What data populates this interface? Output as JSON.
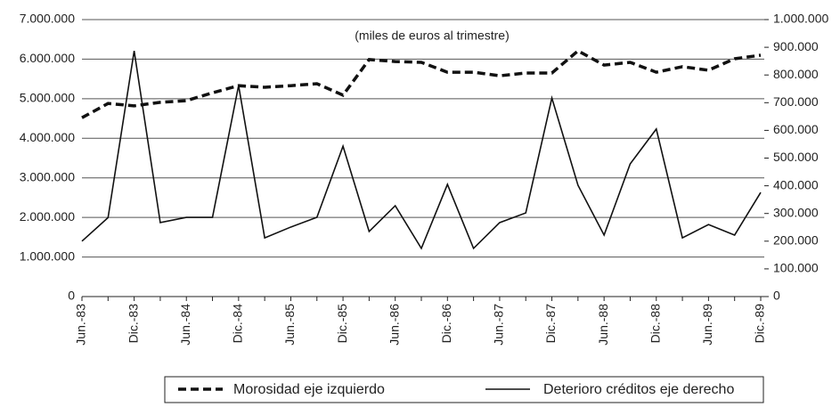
{
  "chart_data": {
    "type": "line",
    "annotation": "(miles de euros al trimestre)",
    "categories": [
      "Jun.-83",
      null,
      "Dic.-83",
      null,
      "Jun.-84",
      null,
      "Dic.-84",
      null,
      "Jun.-85",
      null,
      "Dic.-85",
      null,
      "Jun.-86",
      null,
      "Dic.-86",
      null,
      "Jun.-87",
      null,
      "Dic.-87",
      null,
      "Jun.-88",
      null,
      "Dic.-88",
      null,
      "Jun.-89",
      null,
      "Dic.-89"
    ],
    "series": [
      {
        "name": "Morosidad eje izquierdo",
        "color": "#111111",
        "dash": true,
        "values": [
          4520000,
          4880000,
          4820000,
          4910000,
          4950000,
          5150000,
          5330000,
          5290000,
          5330000,
          5380000,
          5090000,
          5990000,
          5940000,
          5920000,
          5670000,
          5670000,
          5580000,
          5650000,
          5650000,
          6210000,
          5850000,
          5920000,
          5670000,
          5810000,
          5720000,
          6010000,
          6100000
        ]
      },
      {
        "name": "Deterioro créditos eje derecho",
        "color": "#111111",
        "dash": false,
        "axis": "y2",
        "values": [
          200000,
          285000,
          887000,
          267000,
          286000,
          286000,
          762000,
          212000,
          251000,
          286000,
          543000,
          235000,
          328000,
          174000,
          405000,
          174000,
          267000,
          302000,
          717000,
          402000,
          222000,
          479000,
          605000,
          212000,
          260000,
          222000,
          376000
        ]
      }
    ],
    "ylim": [
      0,
      7000000
    ],
    "yticks": [
      0,
      {
        "value": 1000000,
        "label": "1.000.000"
      },
      {
        "value": 2000000,
        "label": "2.000.000"
      },
      {
        "value": 3000000,
        "label": "3.000.000"
      },
      {
        "value": 4000000,
        "label": "4.000.000"
      },
      {
        "value": 5000000,
        "label": "5.000.000"
      },
      {
        "value": 6000000,
        "label": "6.000.000"
      },
      {
        "value": 7000000,
        "label": "7.000.000"
      }
    ],
    "y2lim": [
      0,
      1000000
    ],
    "y2ticks": [
      0,
      {
        "value": 100000,
        "label": "100.000"
      },
      {
        "value": 200000,
        "label": "200.000"
      },
      {
        "value": 300000,
        "label": "300.000"
      },
      {
        "value": 400000,
        "label": "400.000"
      },
      {
        "value": 500000,
        "label": "500.000"
      },
      {
        "value": 600000,
        "label": "600.000"
      },
      {
        "value": 700000,
        "label": "700.000"
      },
      {
        "value": 800000,
        "label": "800.000"
      },
      {
        "value": 900000,
        "label": "900.000"
      },
      {
        "value": 1000000,
        "label": "1.000.000"
      }
    ],
    "grid": true
  }
}
